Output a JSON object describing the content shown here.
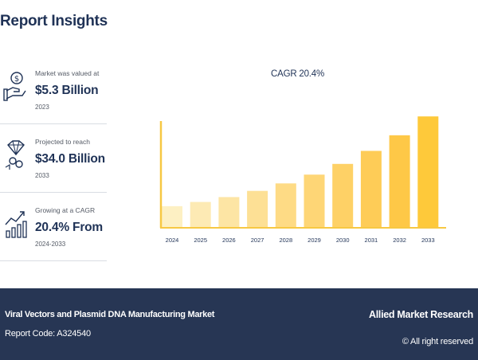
{
  "header": {
    "title": "Report Insights"
  },
  "stats": [
    {
      "label": "Market was valued at",
      "value": "$5.3 Billion",
      "year": "2023",
      "icon": "money-hand-icon"
    },
    {
      "label": "Projected to reach",
      "value": "$34.0 Billion",
      "year": "2033",
      "icon": "diamond-coins-icon"
    },
    {
      "label": "Growing at a CAGR",
      "value": "20.4% From",
      "year": "2024-2033",
      "icon": "growth-chart-icon"
    }
  ],
  "chart_data": {
    "type": "bar",
    "title": "CAGR 20.4%",
    "categories": [
      "2024",
      "2025",
      "2026",
      "2027",
      "2028",
      "2029",
      "2030",
      "2031",
      "2032",
      "2033"
    ],
    "values": [
      6.4,
      7.7,
      9.2,
      11.1,
      13.4,
      16.1,
      19.4,
      23.4,
      28.2,
      34.0
    ],
    "ylim": [
      0,
      36
    ],
    "colors": [
      "#fdf0c3",
      "#fdeab4",
      "#fde5a4",
      "#fde095",
      "#fedb85",
      "#fed676",
      "#fed166",
      "#fecc57",
      "#fec847",
      "#fec93a"
    ],
    "axis_color": "#f7c843"
  },
  "footer": {
    "market_name": "Viral Vectors and Plasmid DNA Manufacturing Market",
    "report_code": "Report Code: A324540",
    "brand": "Allied Market Research",
    "rights": "© All right reserved"
  }
}
